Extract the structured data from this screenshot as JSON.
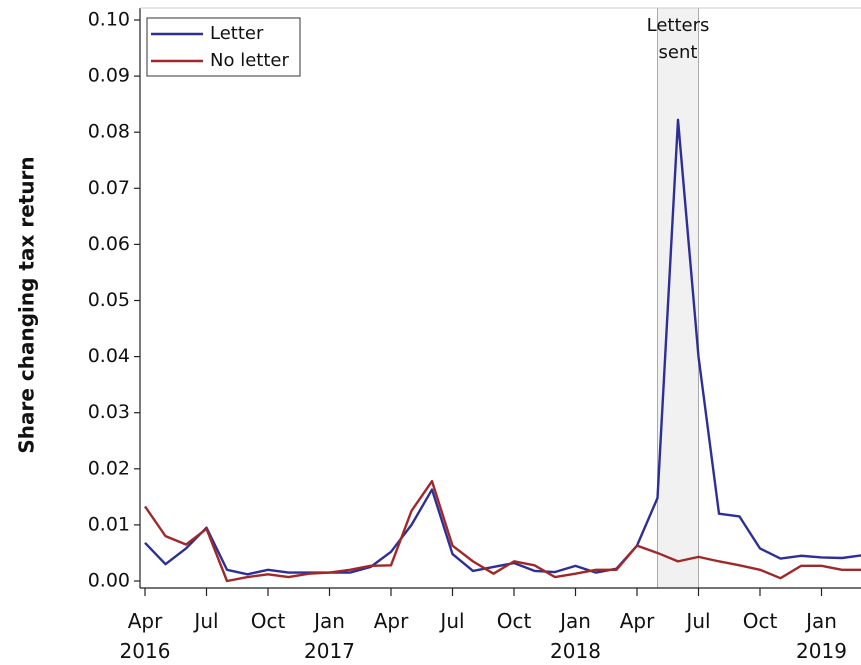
{
  "chart_data": {
    "type": "line",
    "y_label": "Share changing tax return",
    "categories": [
      "Apr 2016",
      null,
      null,
      "Jul",
      null,
      null,
      "Oct",
      null,
      null,
      "Jan 2017",
      null,
      null,
      "Apr",
      null,
      null,
      "Jul",
      null,
      null,
      "Oct",
      null,
      null,
      "Jan 2018",
      null,
      null,
      "Apr",
      null,
      null,
      "Jul",
      null,
      null,
      "Oct",
      null,
      null,
      "Jan 2019",
      null,
      null
    ],
    "series": [
      {
        "name": "Letter",
        "color": "#2e2f96",
        "values": [
          0.0068,
          0.003,
          0.0058,
          0.0095,
          0.002,
          0.0012,
          0.002,
          0.0015,
          0.0015,
          0.0015,
          0.0015,
          0.0025,
          0.0052,
          0.01,
          0.0163,
          0.0048,
          0.0018,
          0.0025,
          0.0032,
          0.0018,
          0.0016,
          0.0027,
          0.0015,
          0.0022,
          0.0063,
          0.0148,
          0.0822,
          0.04,
          0.012,
          0.0115,
          0.0058,
          0.004,
          0.0045,
          0.0042,
          0.0041,
          0.0046
        ]
      },
      {
        "name": "No letter",
        "color": "#a02828",
        "values": [
          0.0133,
          0.008,
          0.0065,
          0.0093,
          0.0,
          0.0007,
          0.0012,
          0.0007,
          0.0013,
          0.0015,
          0.002,
          0.0027,
          0.0028,
          0.0125,
          0.0178,
          0.0063,
          0.0035,
          0.0013,
          0.0035,
          0.0028,
          0.0007,
          0.0013,
          0.002,
          0.002,
          0.0063,
          0.005,
          0.0035,
          0.0043,
          0.0035,
          0.0028,
          0.002,
          0.0005,
          0.0027,
          0.0027,
          0.002,
          0.002
        ]
      }
    ],
    "ylim": [
      0,
      0.1
    ],
    "yticks": [
      {
        "value": 0,
        "label": "0.00"
      },
      0.01,
      0.02,
      0.03,
      0.04,
      0.05,
      0.06,
      0.07,
      0.08,
      0.09,
      {
        "value": 0.1,
        "label": "0.10"
      }
    ],
    "annotation": {
      "text": "Letters sent",
      "span": [
        25,
        27
      ]
    },
    "legend": "top-left",
    "grid": false
  }
}
